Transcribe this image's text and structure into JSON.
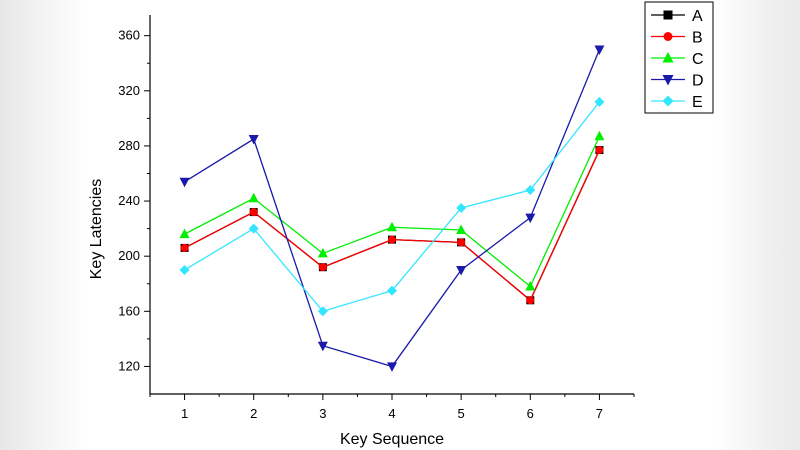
{
  "chart_data": {
    "type": "line",
    "title": "",
    "xlabel": "Key Sequence",
    "ylabel": "Key Latencies",
    "x": [
      1,
      2,
      3,
      4,
      5,
      6,
      7
    ],
    "x_ticks": [
      "1",
      "2",
      "3",
      "4",
      "5",
      "6",
      "7"
    ],
    "xlim": [
      0.5,
      7.5
    ],
    "ylim": [
      100,
      375
    ],
    "y_ticks": [
      120,
      160,
      200,
      240,
      280,
      320,
      360
    ],
    "grid": false,
    "legend_position": "top-right",
    "series": [
      {
        "name": "A",
        "color": "#000000",
        "marker": "square",
        "values": [
          206,
          232,
          192,
          212,
          210,
          168,
          277
        ]
      },
      {
        "name": "B",
        "color": "#ff0000",
        "marker": "circle",
        "values": [
          206,
          232,
          192,
          212,
          210,
          168,
          277
        ]
      },
      {
        "name": "C",
        "color": "#00ee00",
        "marker": "triangle-up",
        "values": [
          216,
          242,
          202,
          221,
          219,
          178,
          287
        ]
      },
      {
        "name": "D",
        "color": "#1a1aaa",
        "marker": "triangle-down",
        "values": [
          254,
          285,
          135,
          120,
          190,
          228,
          350
        ]
      },
      {
        "name": "E",
        "color": "#33e6ff",
        "marker": "diamond",
        "values": [
          190,
          220,
          160,
          175,
          235,
          248,
          312
        ]
      }
    ]
  }
}
